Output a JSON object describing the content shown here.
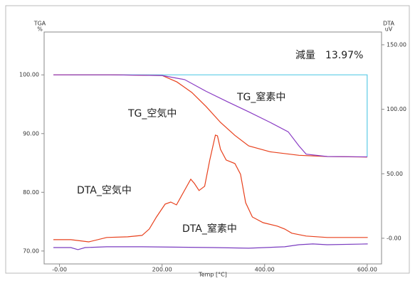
{
  "chart_data": {
    "type": "line",
    "xlabel": "Temp [°C]",
    "ylabel": "TGA",
    "yunit": "%",
    "y2label": "DTA",
    "y2unit": "uV",
    "annotation": "減量　13.97%",
    "xlim": [
      -30,
      628
    ],
    "xticks": [
      {
        "value": 0,
        "label": "-0.00"
      },
      {
        "value": 200,
        "label": "200.00"
      },
      {
        "value": 400,
        "label": "400.00"
      },
      {
        "value": 600,
        "label": "600.00"
      }
    ],
    "ylim": [
      67.8,
      107.3
    ],
    "yticks": [
      {
        "value": 70,
        "label": "70.00"
      },
      {
        "value": 80,
        "label": "80.00"
      },
      {
        "value": 90,
        "label": "90.00"
      },
      {
        "value": 100,
        "label": "100.00"
      }
    ],
    "y2lim": [
      -19.9,
      159.9
    ],
    "y2ticks": [
      {
        "value": 0,
        "label": "-0.00"
      },
      {
        "value": 50,
        "label": "50.00"
      },
      {
        "value": 100,
        "label": "100.00"
      },
      {
        "value": 150,
        "label": "150.00"
      }
    ],
    "grid": false,
    "series": [
      {
        "color": "#5bcbe6",
        "x": [
          20,
          600,
          600
        ],
        "values": [
          100,
          100,
          86.03
        ]
      },
      {
        "name": "TG_空気中",
        "color": "#e8401c",
        "x": [
          -12,
          100,
          200,
          229,
          258,
          286,
          314,
          342,
          369,
          411,
          467,
          522,
          600
        ],
        "values": [
          100,
          100,
          99.9,
          98.8,
          97.0,
          94.6,
          91.9,
          89.7,
          87.9,
          86.9,
          86.3,
          86.1,
          86.0
        ]
      },
      {
        "name": "TG_窒素中",
        "color": "#8a3cc4",
        "x": [
          -12,
          100,
          200,
          244,
          286,
          328,
          369,
          411,
          446,
          467,
          481,
          522,
          600
        ],
        "values": [
          100,
          100,
          99.9,
          99.2,
          97.2,
          95.4,
          93.7,
          91.9,
          90.3,
          87.9,
          86.5,
          86.1,
          86.03
        ]
      },
      {
        "name": "DTA_空気中",
        "color": "#e8401c",
        "axis": "y2",
        "x": [
          -12,
          22,
          57,
          92,
          133,
          161,
          175,
          189,
          206,
          217,
          228,
          242,
          256,
          263,
          272,
          283,
          293,
          304,
          308,
          314,
          325,
          342,
          353,
          363,
          376,
          397,
          425,
          439,
          453,
          481,
          522,
          601
        ],
        "values": [
          -1.1,
          -1.1,
          -2.8,
          0.6,
          1.1,
          2.2,
          7.2,
          16.5,
          26.5,
          28.1,
          25.9,
          35.8,
          45.8,
          42.5,
          37.0,
          40.3,
          60.7,
          80.0,
          79.4,
          68.9,
          60.7,
          57.9,
          49.6,
          27.6,
          16.5,
          12.1,
          9.4,
          7.2,
          3.9,
          1.7,
          0.6,
          0.6
        ]
      },
      {
        "name": "DTA_窒素中",
        "color": "#7a3cc0",
        "axis": "y2",
        "x": [
          -12,
          22,
          36,
          50,
          92,
          161,
          300,
          369,
          439,
          467,
          494,
          522,
          601
        ],
        "values": [
          -7.2,
          -7.2,
          -8.8,
          -7.2,
          -6.6,
          -6.6,
          -7.2,
          -7.7,
          -6.6,
          -5.0,
          -4.4,
          -5.0,
          -4.4
        ]
      }
    ]
  }
}
